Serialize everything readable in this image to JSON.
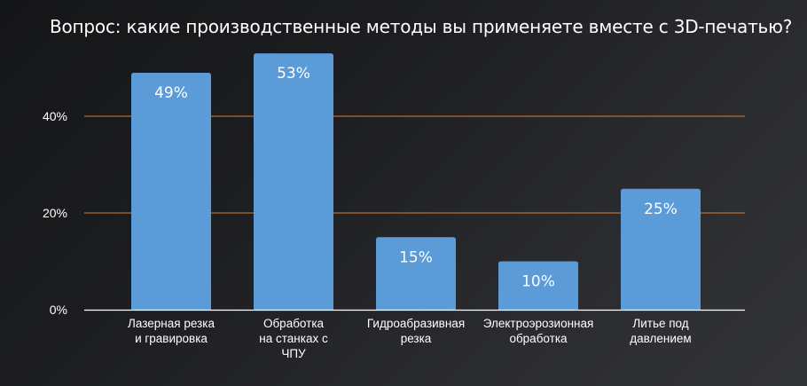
{
  "chart_data": {
    "type": "bar",
    "title": "Вопрос: какие производственные методы вы применяете вместе с 3D-печатью?",
    "categories": [
      [
        "Лазерная резка",
        "и гравировка"
      ],
      [
        "Обработка",
        "на станках с",
        "ЧПУ"
      ],
      [
        "Гидроабразивная",
        "резка"
      ],
      [
        "Электроэрозионная",
        "обработка"
      ],
      [
        "Литье под",
        "давлением"
      ]
    ],
    "values": [
      49,
      53,
      15,
      10,
      25
    ],
    "data_labels": [
      "49%",
      "53%",
      "15%",
      "10%",
      "25%"
    ],
    "yticks": [
      0,
      20,
      40
    ],
    "ytick_labels": [
      "0%",
      "20%",
      "40%"
    ],
    "ylim": [
      0,
      60
    ],
    "grid": true,
    "colors": {
      "bar": "#5b9bd8",
      "gridline": "#e07b2c",
      "baseline": "#ffffff"
    }
  }
}
